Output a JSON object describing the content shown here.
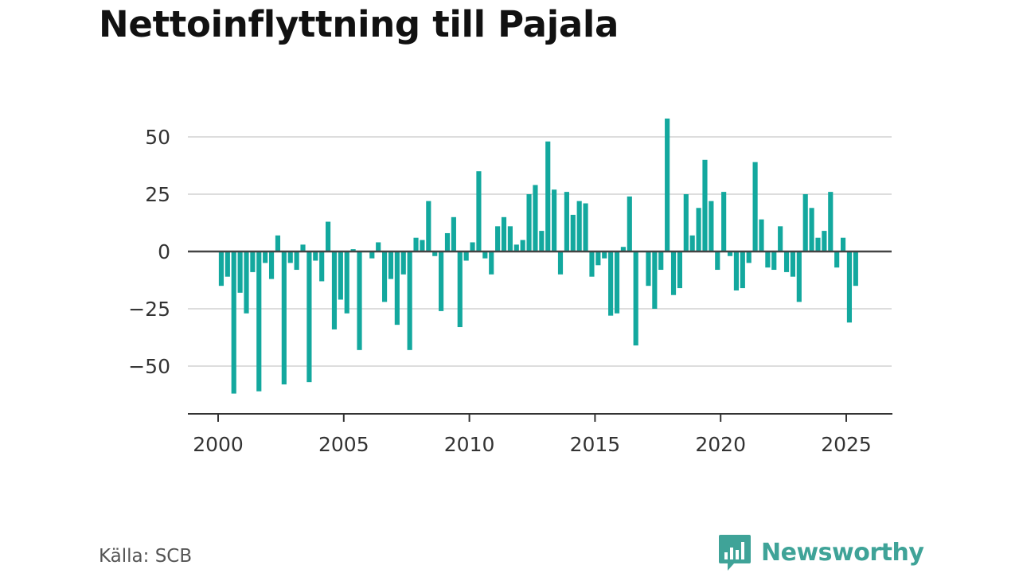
{
  "title": "Nettoinflyttning till Pajala",
  "source": "Källa: SCB",
  "brand": {
    "name": "Newsworthy",
    "logo_icon": "bar-chart-speech-bubble-icon"
  },
  "colors": {
    "bar": "#13a89e",
    "zero_line": "#444444",
    "grid": "#dddddd",
    "axis": "#333333",
    "brand": "#3fa398"
  },
  "chart_data": {
    "type": "bar",
    "title": "Nettoinflyttning till Pajala",
    "xlabel": "",
    "ylabel": "",
    "ylim": [
      -70,
      60
    ],
    "yticks": [
      50,
      25,
      0,
      -25,
      -50
    ],
    "ytick_labels": [
      "50",
      "25",
      "0",
      "−25",
      "−50"
    ],
    "xticks": [
      2000,
      2005,
      2010,
      2015,
      2020,
      2025
    ],
    "xlim": [
      1999.1,
      2026.4
    ],
    "grid": true,
    "legend": "none",
    "frequency": "quarterly",
    "x_start": 2000.0,
    "values": [
      -15,
      -11,
      -62,
      -18,
      -27,
      -9,
      -61,
      -5,
      -12,
      7,
      -58,
      -5,
      -8,
      3,
      -57,
      -4,
      -13,
      13,
      -34,
      -21,
      -27,
      1,
      -43,
      0,
      -3,
      4,
      -22,
      -12,
      -32,
      -10,
      -43,
      6,
      5,
      22,
      -2,
      -26,
      8,
      15,
      -33,
      -4,
      4,
      35,
      -3,
      -10,
      11,
      15,
      11,
      3,
      5,
      25,
      29,
      9,
      48,
      27,
      -10,
      26,
      16,
      22,
      21,
      -11,
      -6,
      -3,
      -28,
      -27,
      2,
      24,
      -41,
      0,
      -15,
      -25,
      -8,
      58,
      -19,
      -16,
      25,
      7,
      19,
      40,
      22,
      -8,
      26,
      -2,
      -17,
      -16,
      -5,
      39,
      14,
      -7,
      -8,
      11,
      -9,
      -11,
      -22,
      25,
      19,
      6,
      9,
      26,
      -7,
      6,
      -31,
      -15
    ]
  }
}
